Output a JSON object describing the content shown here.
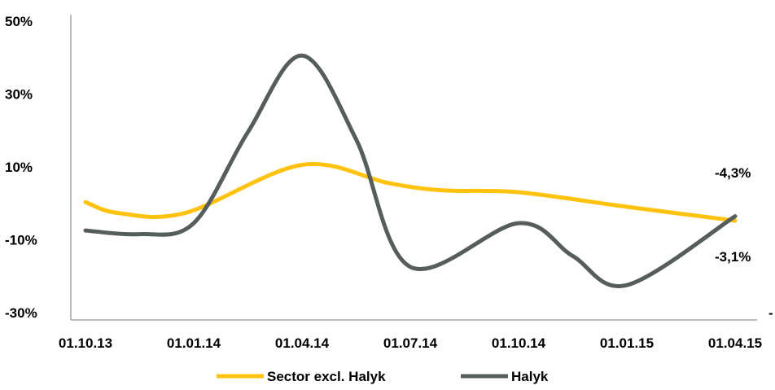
{
  "chart_data": {
    "type": "line",
    "categories": [
      "01.10.13",
      "01.01.14",
      "01.04.14",
      "01.07.14",
      "01.10.14",
      "01.01.15",
      "01.04.15"
    ],
    "ylim": [
      -30,
      50
    ],
    "yticks": [
      "50%",
      "30%",
      "10%",
      "-10%",
      "-30%"
    ],
    "ytick_values": [
      50,
      30,
      10,
      -10,
      -30
    ],
    "grid": false,
    "legend": "bottom",
    "series": [
      {
        "name": "Sector excl. Halyk",
        "color": "#FFC20E",
        "points": [
          [
            0,
            0.8
          ],
          [
            0.3,
            -2.2
          ],
          [
            0.92,
            -2.2
          ],
          [
            2,
            11
          ],
          [
            2.8,
            6
          ],
          [
            3.3,
            4
          ],
          [
            4,
            3.5
          ],
          [
            5,
            -0.5
          ],
          [
            6,
            -4.3
          ]
        ]
      },
      {
        "name": "Halyk",
        "color": "#555E5C",
        "points": [
          [
            0,
            -7
          ],
          [
            0.5,
            -8
          ],
          [
            1,
            -5
          ],
          [
            1.5,
            20
          ],
          [
            2,
            41
          ],
          [
            2.5,
            18
          ],
          [
            3,
            -17
          ],
          [
            4,
            -5
          ],
          [
            4.5,
            -14
          ],
          [
            5,
            -22
          ],
          [
            6,
            -3.1
          ]
        ]
      }
    ],
    "end_labels": [
      "-4,3%",
      "-3,1%"
    ],
    "stray_mark": "-"
  }
}
